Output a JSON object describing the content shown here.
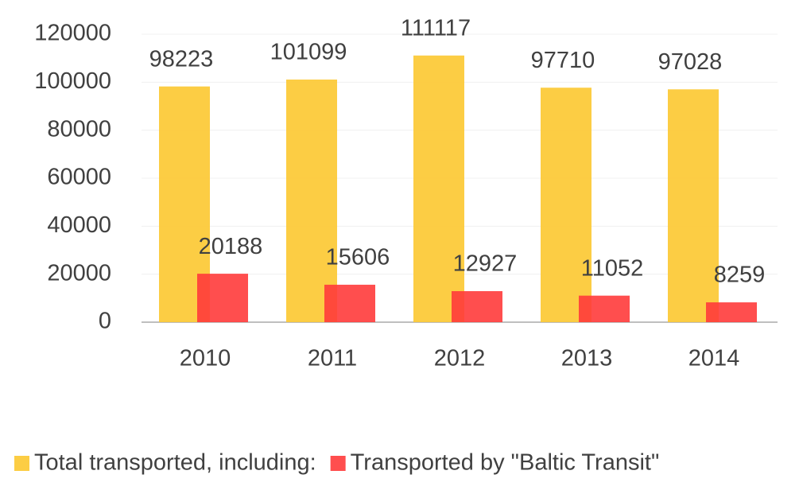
{
  "chart_data": {
    "type": "bar",
    "categories": [
      "2010",
      "2011",
      "2012",
      "2013",
      "2014"
    ],
    "series": [
      {
        "name": "Total transported, including:",
        "color": "#fcc934",
        "values": [
          98223,
          101099,
          111117,
          97710,
          97028
        ]
      },
      {
        "name": "Transported by \"Baltic Transit\"",
        "color": "#ff3b3b",
        "values": [
          20188,
          15606,
          12927,
          11052,
          8259
        ]
      }
    ],
    "ylim": [
      0,
      120000
    ],
    "yticks": [
      0,
      20000,
      40000,
      60000,
      80000,
      100000,
      120000
    ],
    "grid": true,
    "legend": "bottom"
  }
}
